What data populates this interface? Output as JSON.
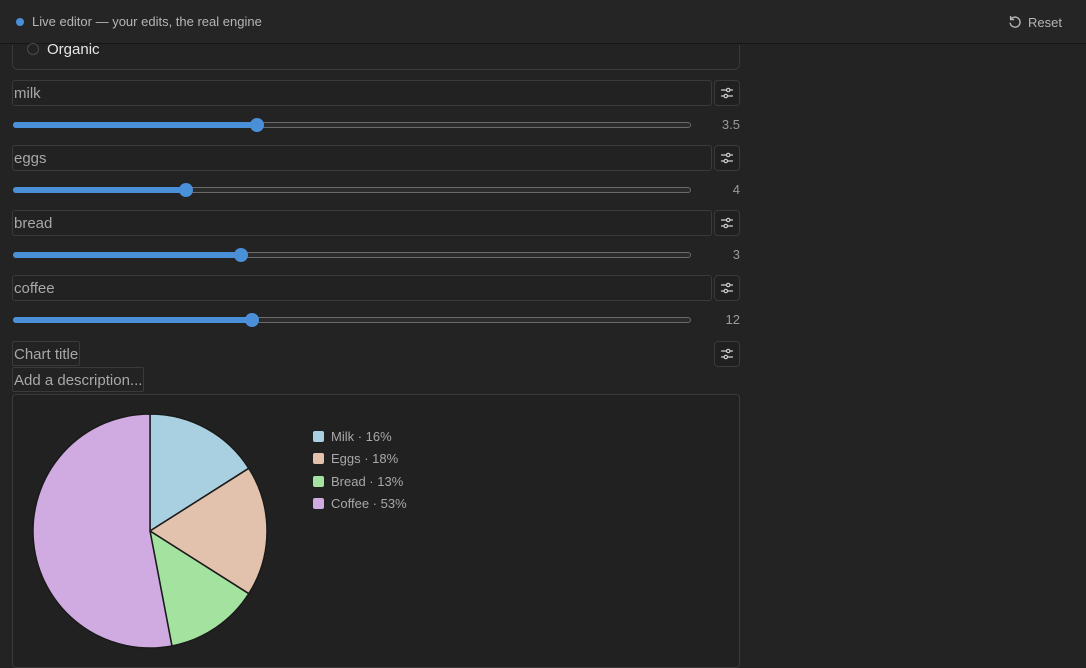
{
  "topbar": {
    "title": "Live editor — your edits, the real engine",
    "reset_label": "Reset"
  },
  "organic": {
    "label": "Organic"
  },
  "fields": [
    {
      "name": "milk",
      "slider_value": "3.5",
      "fill_fraction": 0.36
    },
    {
      "name": "eggs",
      "slider_value": "4",
      "fill_fraction": 0.255
    },
    {
      "name": "bread",
      "slider_value": "3",
      "fill_fraction": 0.336
    },
    {
      "name": "coffee",
      "slider_value": "12",
      "fill_fraction": 0.352
    }
  ],
  "chart_title_placeholder": "Chart title",
  "description_placeholder": "Add a description...",
  "chart_data": {
    "type": "pie",
    "slices": [
      {
        "label": "Milk",
        "value": 16,
        "color": "#a8d0e0"
      },
      {
        "label": "Eggs",
        "value": 18,
        "color": "#e2c2ac"
      },
      {
        "label": "Bread",
        "value": 13,
        "color": "#a4e2a0"
      },
      {
        "label": "Coffee",
        "value": 53,
        "color": "#d0abe2"
      }
    ],
    "legend_labels": [
      "Milk · 16%",
      "Eggs · 18%",
      "Bread · 13%",
      "Coffee · 53%"
    ],
    "legend_position": "right"
  },
  "colors": {
    "accent": "#4a90d9",
    "background": "#232323"
  }
}
